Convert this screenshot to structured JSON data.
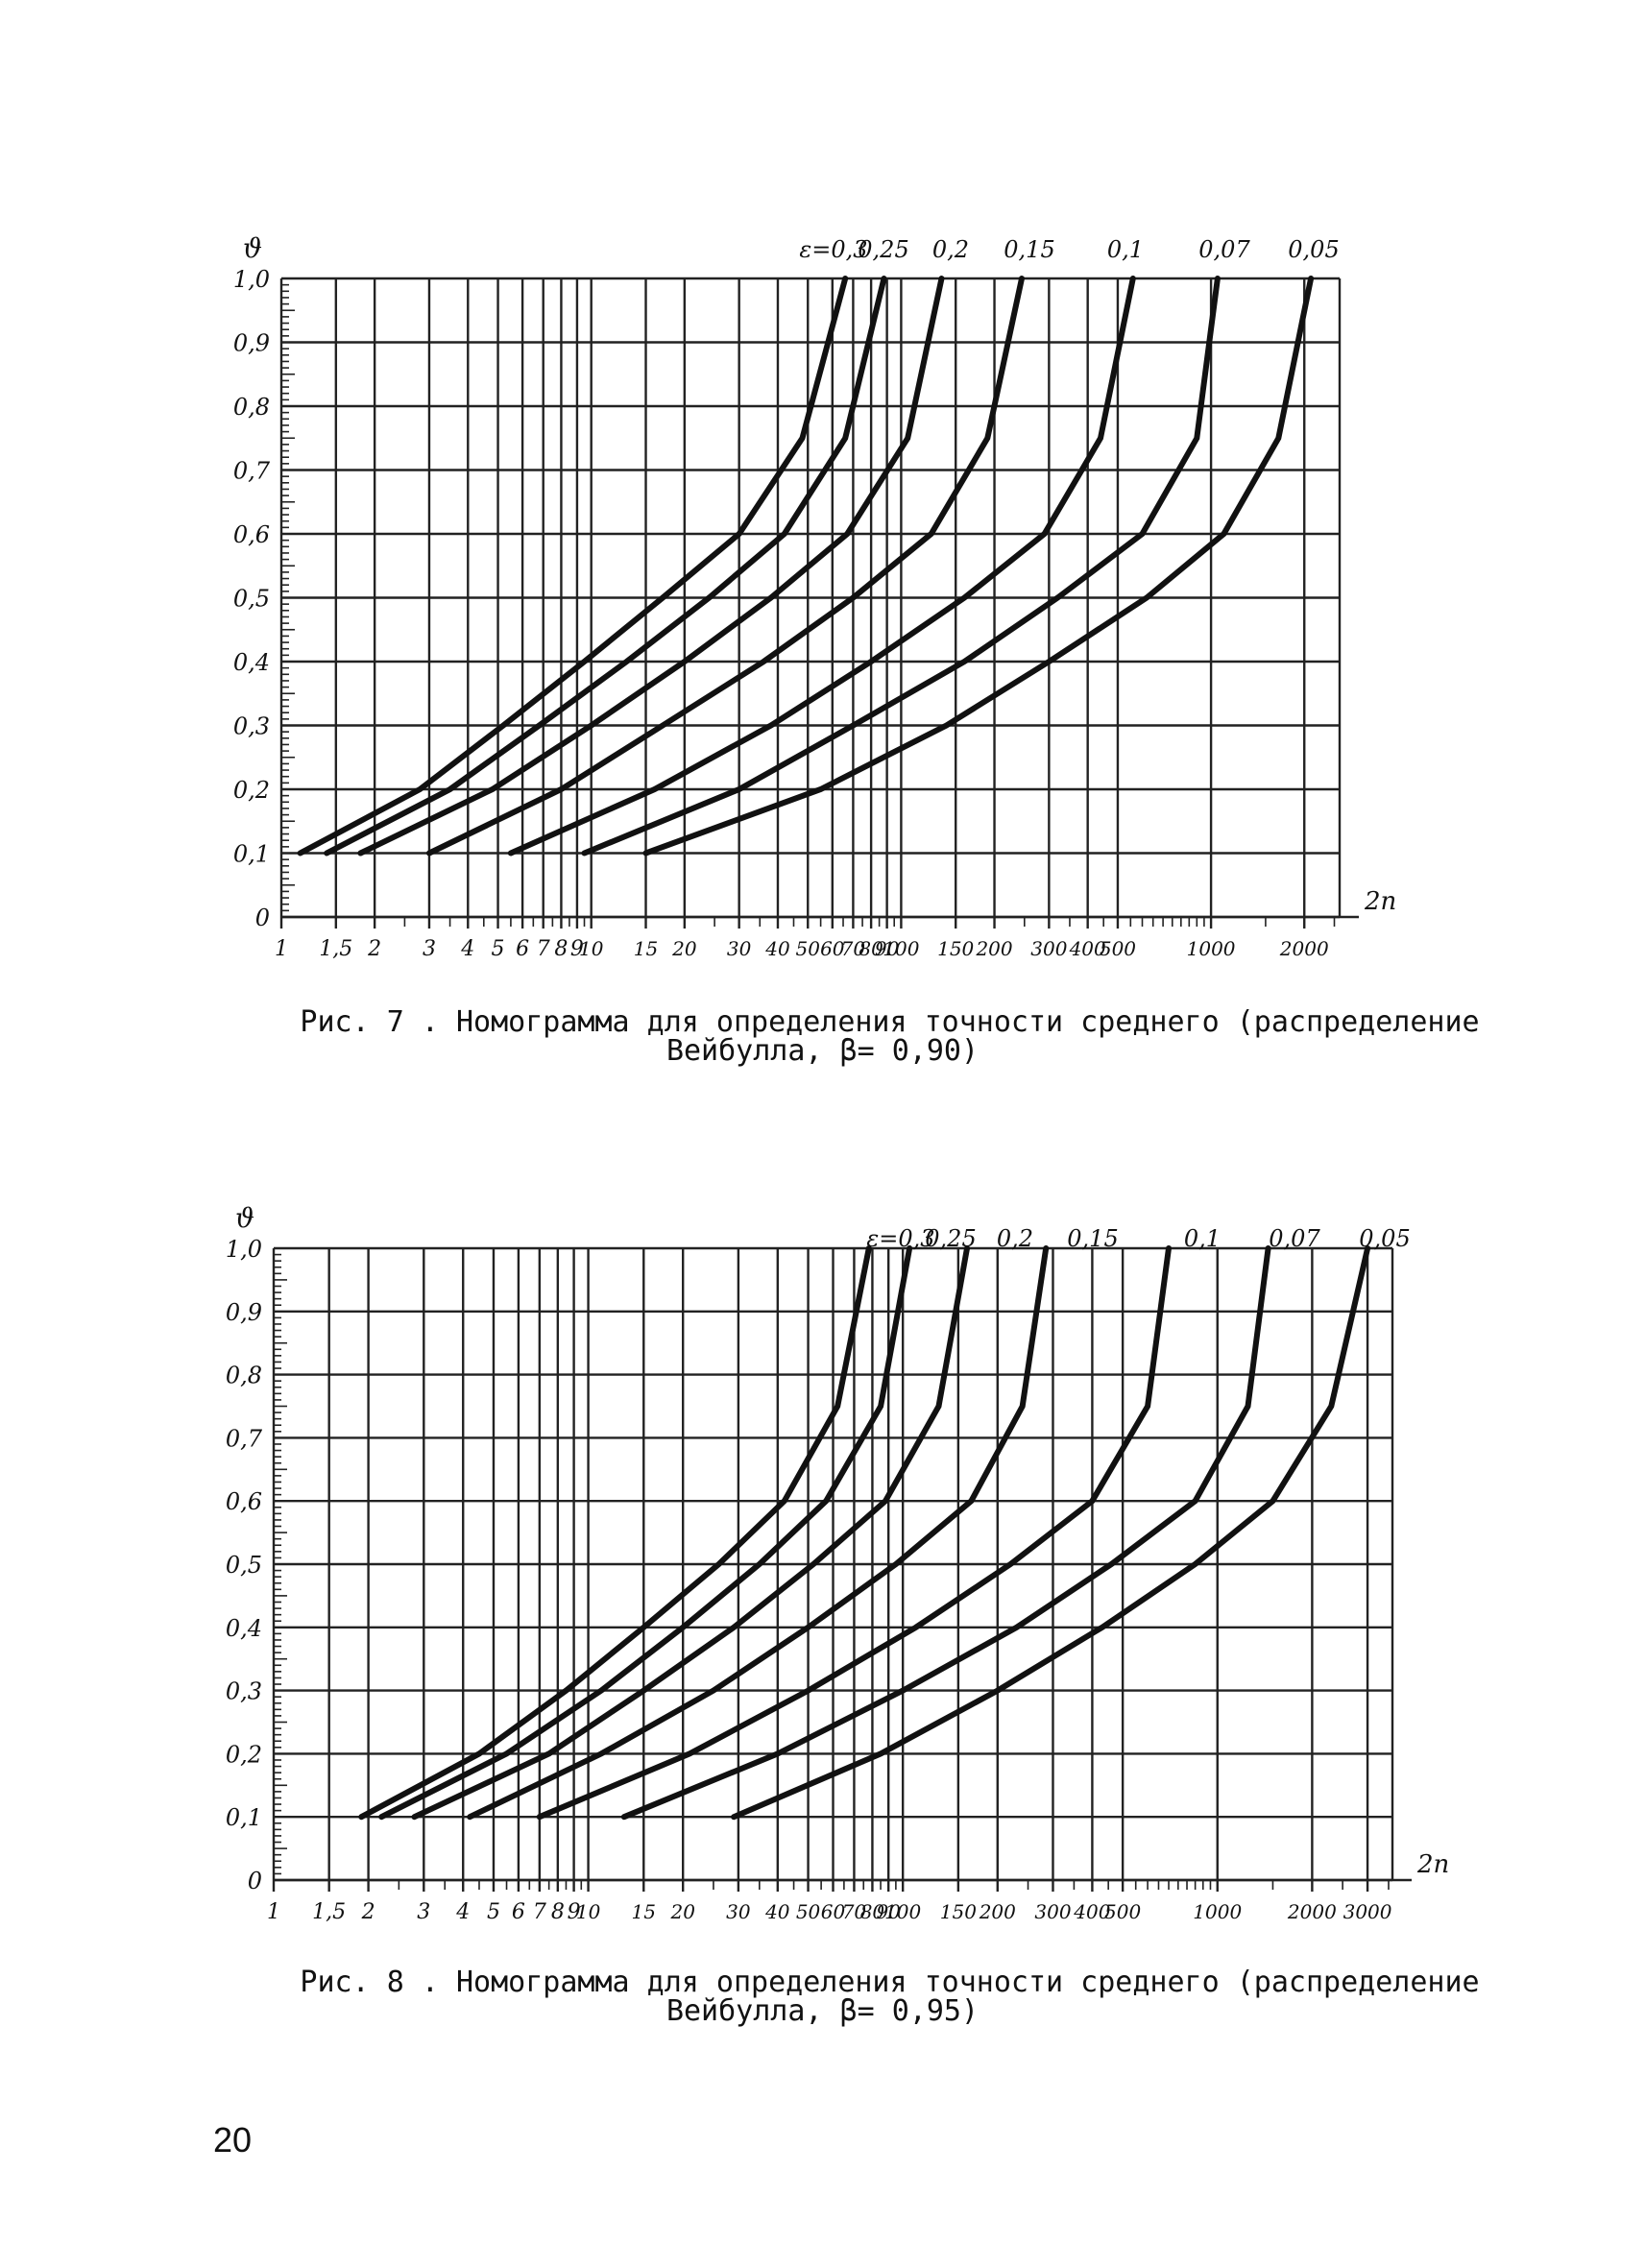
{
  "page_number": "20",
  "figures": [
    {
      "id": "fig7",
      "caption_line1": "Рис.  7 . Номограмма для определения точности среднего (распределение",
      "caption_line2": "Вейбулла, β= 0,90)",
      "y_axis_symbol": "ϑ",
      "x_axis_symbol": "2n",
      "y_tick_labels": [
        "0",
        "0,1",
        "0,2",
        "0,3",
        "0,4",
        "0,5",
        "0,6",
        "0,7",
        "0,8",
        "0,9",
        "1,0"
      ],
      "x_tick_labels": [
        "1",
        "1,5",
        "2",
        "3",
        "4",
        "5",
        "6",
        "7",
        "8",
        "9",
        "10",
        "15",
        "20",
        "30",
        "40",
        "50",
        "60",
        "70",
        "80",
        "90",
        "100",
        "150",
        "200",
        "300",
        "400",
        "500",
        "1000",
        "2000"
      ],
      "curve_labels": [
        "ε=0,3",
        "0,25",
        "0,2",
        "0,15",
        "0,1",
        "0,07",
        "0,05"
      ]
    },
    {
      "id": "fig8",
      "caption_line1": "Рис.  8 . Номограмма для определения точности среднего (распределение",
      "caption_line2": "Вейбулла, β= 0,95)",
      "y_axis_symbol": "ϑ",
      "x_axis_symbol": "2n",
      "y_tick_labels": [
        "0",
        "0,1",
        "0,2",
        "0,3",
        "0,4",
        "0,5",
        "0,6",
        "0,7",
        "0,8",
        "0,9",
        "1,0"
      ],
      "x_tick_labels": [
        "1",
        "1,5",
        "2",
        "3",
        "4",
        "5",
        "6",
        "7",
        "8",
        "9",
        "10",
        "15",
        "20",
        "30",
        "40",
        "50",
        "60",
        "70",
        "80",
        "90",
        "100",
        "150",
        "200",
        "300",
        "400",
        "500",
        "1000",
        "2000",
        "3000"
      ],
      "curve_labels": [
        "ε=0,3",
        "0,25",
        "0,2",
        "0,15",
        "0,1",
        "0,07",
        "0,05"
      ]
    }
  ],
  "chart_data": [
    {
      "type": "line",
      "x_scale": "log",
      "xlim": [
        1,
        2600
      ],
      "ylim": [
        0,
        1.0
      ],
      "grid": true,
      "xlabel": "2n",
      "ylabel": "ϑ",
      "x_ticks": [
        1,
        1.5,
        2,
        3,
        4,
        5,
        6,
        7,
        8,
        9,
        10,
        15,
        20,
        30,
        40,
        50,
        60,
        70,
        80,
        90,
        100,
        150,
        200,
        300,
        400,
        500,
        1000,
        2000
      ],
      "y_ticks": [
        0,
        0.1,
        0.2,
        0.3,
        0.4,
        0.5,
        0.6,
        0.7,
        0.8,
        0.9,
        1.0
      ],
      "series": [
        {
          "name": "ε=0,3",
          "x": [
            1.15,
            2.8,
            5.2,
            9.5,
            17,
            30,
            48,
            66
          ],
          "y": [
            0.1,
            0.2,
            0.3,
            0.4,
            0.5,
            0.6,
            0.75,
            1.0
          ]
        },
        {
          "name": "0,25",
          "x": [
            1.4,
            3.5,
            6.8,
            13,
            24,
            42,
            66,
            88
          ],
          "y": [
            0.1,
            0.2,
            0.3,
            0.4,
            0.5,
            0.6,
            0.75,
            1.0
          ]
        },
        {
          "name": "0,2",
          "x": [
            1.8,
            4.8,
            10,
            20,
            38,
            67,
            105,
            135
          ],
          "y": [
            0.1,
            0.2,
            0.3,
            0.4,
            0.5,
            0.6,
            0.75,
            1.0
          ]
        },
        {
          "name": "0,15",
          "x": [
            3,
            8,
            17,
            36,
            70,
            125,
            190,
            245
          ],
          "y": [
            0.1,
            0.2,
            0.3,
            0.4,
            0.5,
            0.6,
            0.75,
            1.0
          ]
        },
        {
          "name": "0,1",
          "x": [
            5.5,
            16,
            38,
            80,
            160,
            290,
            440,
            560
          ],
          "y": [
            0.1,
            0.2,
            0.3,
            0.4,
            0.5,
            0.6,
            0.75,
            1.0
          ]
        },
        {
          "name": "0,07",
          "x": [
            9.5,
            30,
            70,
            160,
            320,
            600,
            900,
            1050
          ],
          "y": [
            0.1,
            0.2,
            0.3,
            0.4,
            0.5,
            0.6,
            0.75,
            1.0
          ]
        },
        {
          "name": "0,05",
          "x": [
            15,
            55,
            140,
            300,
            620,
            1100,
            1650,
            2100
          ],
          "y": [
            0.1,
            0.2,
            0.3,
            0.4,
            0.5,
            0.6,
            0.75,
            1.0
          ]
        }
      ]
    },
    {
      "type": "line",
      "x_scale": "log",
      "xlim": [
        1,
        3600
      ],
      "ylim": [
        0,
        1.0
      ],
      "grid": true,
      "xlabel": "2n",
      "ylabel": "ϑ",
      "x_ticks": [
        1,
        1.5,
        2,
        3,
        4,
        5,
        6,
        7,
        8,
        9,
        10,
        15,
        20,
        30,
        40,
        50,
        60,
        70,
        80,
        90,
        100,
        150,
        200,
        300,
        400,
        500,
        1000,
        2000,
        3000
      ],
      "y_ticks": [
        0,
        0.1,
        0.2,
        0.3,
        0.4,
        0.5,
        0.6,
        0.7,
        0.8,
        0.9,
        1.0
      ],
      "series": [
        {
          "name": "ε=0,3",
          "x": [
            1.9,
            4.5,
            8.5,
            15,
            26,
            42,
            62,
            78
          ],
          "y": [
            0.1,
            0.2,
            0.3,
            0.4,
            0.5,
            0.6,
            0.75,
            1.0
          ]
        },
        {
          "name": "0,25",
          "x": [
            2.2,
            5.5,
            11,
            20,
            35,
            57,
            85,
            105
          ],
          "y": [
            0.1,
            0.2,
            0.3,
            0.4,
            0.5,
            0.6,
            0.75,
            1.0
          ]
        },
        {
          "name": "0,2",
          "x": [
            2.8,
            7.5,
            15,
            29,
            52,
            88,
            130,
            160
          ],
          "y": [
            0.1,
            0.2,
            0.3,
            0.4,
            0.5,
            0.6,
            0.75,
            1.0
          ]
        },
        {
          "name": "0,15",
          "x": [
            4.2,
            11,
            25,
            50,
            95,
            165,
            240,
            285
          ],
          "y": [
            0.1,
            0.2,
            0.3,
            0.4,
            0.5,
            0.6,
            0.75,
            1.0
          ]
        },
        {
          "name": "0,1",
          "x": [
            7,
            21,
            50,
            110,
            220,
            400,
            600,
            700
          ],
          "y": [
            0.1,
            0.2,
            0.3,
            0.4,
            0.5,
            0.6,
            0.75,
            1.0
          ]
        },
        {
          "name": "0,07",
          "x": [
            13,
            40,
            100,
            230,
            460,
            850,
            1250,
            1450
          ],
          "y": [
            0.1,
            0.2,
            0.3,
            0.4,
            0.5,
            0.6,
            0.75,
            1.0
          ]
        },
        {
          "name": "0,05",
          "x": [
            29,
            85,
            200,
            430,
            850,
            1500,
            2300,
            3000
          ],
          "y": [
            0.1,
            0.2,
            0.3,
            0.4,
            0.5,
            0.6,
            0.75,
            1.0
          ]
        }
      ]
    }
  ]
}
